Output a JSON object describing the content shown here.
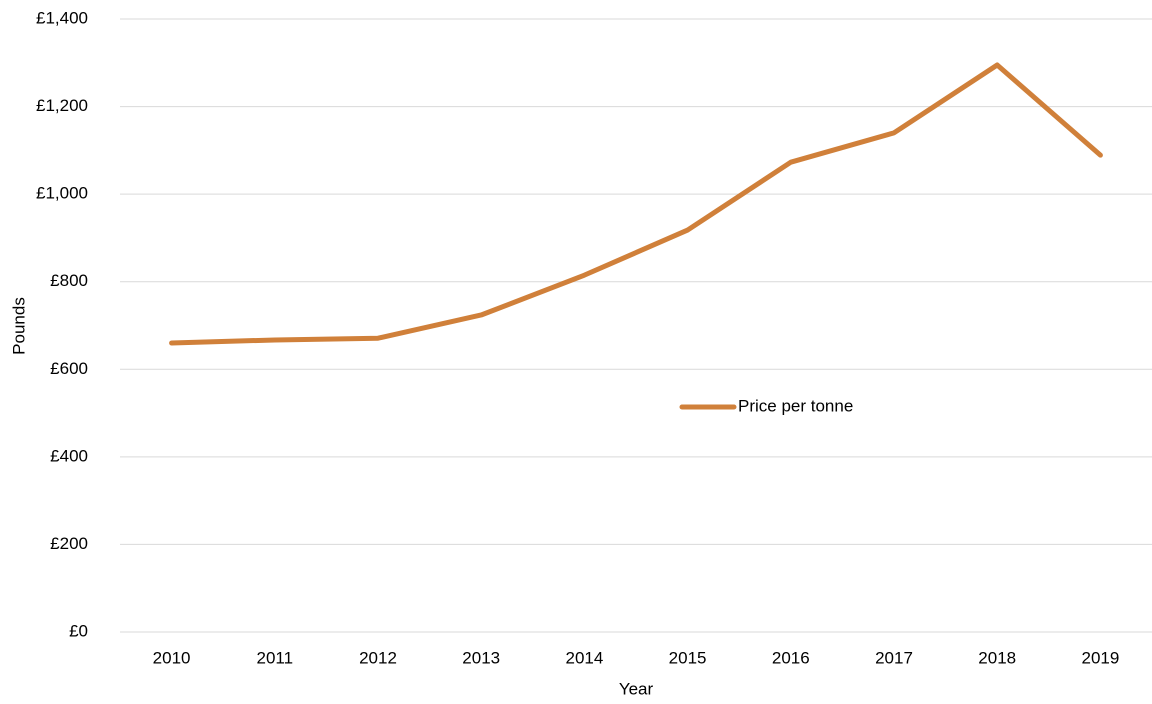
{
  "chart_data": {
    "type": "line",
    "x_label": "Year",
    "y_label": "Pounds",
    "categories": [
      "2010",
      "2011",
      "2012",
      "2013",
      "2014",
      "2015",
      "2016",
      "2017",
      "2018",
      "2019"
    ],
    "series": [
      {
        "name": "Price per tonne",
        "color": "#d0803a",
        "values": [
          660,
          667,
          671,
          724,
          815,
          918,
          1073,
          1140,
          1295,
          1089
        ]
      }
    ],
    "ylim": [
      0,
      1400
    ],
    "yticks": [
      {
        "value": 0,
        "label": "£0"
      },
      {
        "value": 200,
        "label": "£200"
      },
      {
        "value": 400,
        "label": "£400"
      },
      {
        "value": 600,
        "label": "£600"
      },
      {
        "value": 800,
        "label": "£800"
      },
      {
        "value": 1000,
        "label": "£1,000"
      },
      {
        "value": 1200,
        "label": "£1,200"
      },
      {
        "value": 1400,
        "label": "£1,400"
      }
    ],
    "grid": true,
    "legend": "center"
  }
}
